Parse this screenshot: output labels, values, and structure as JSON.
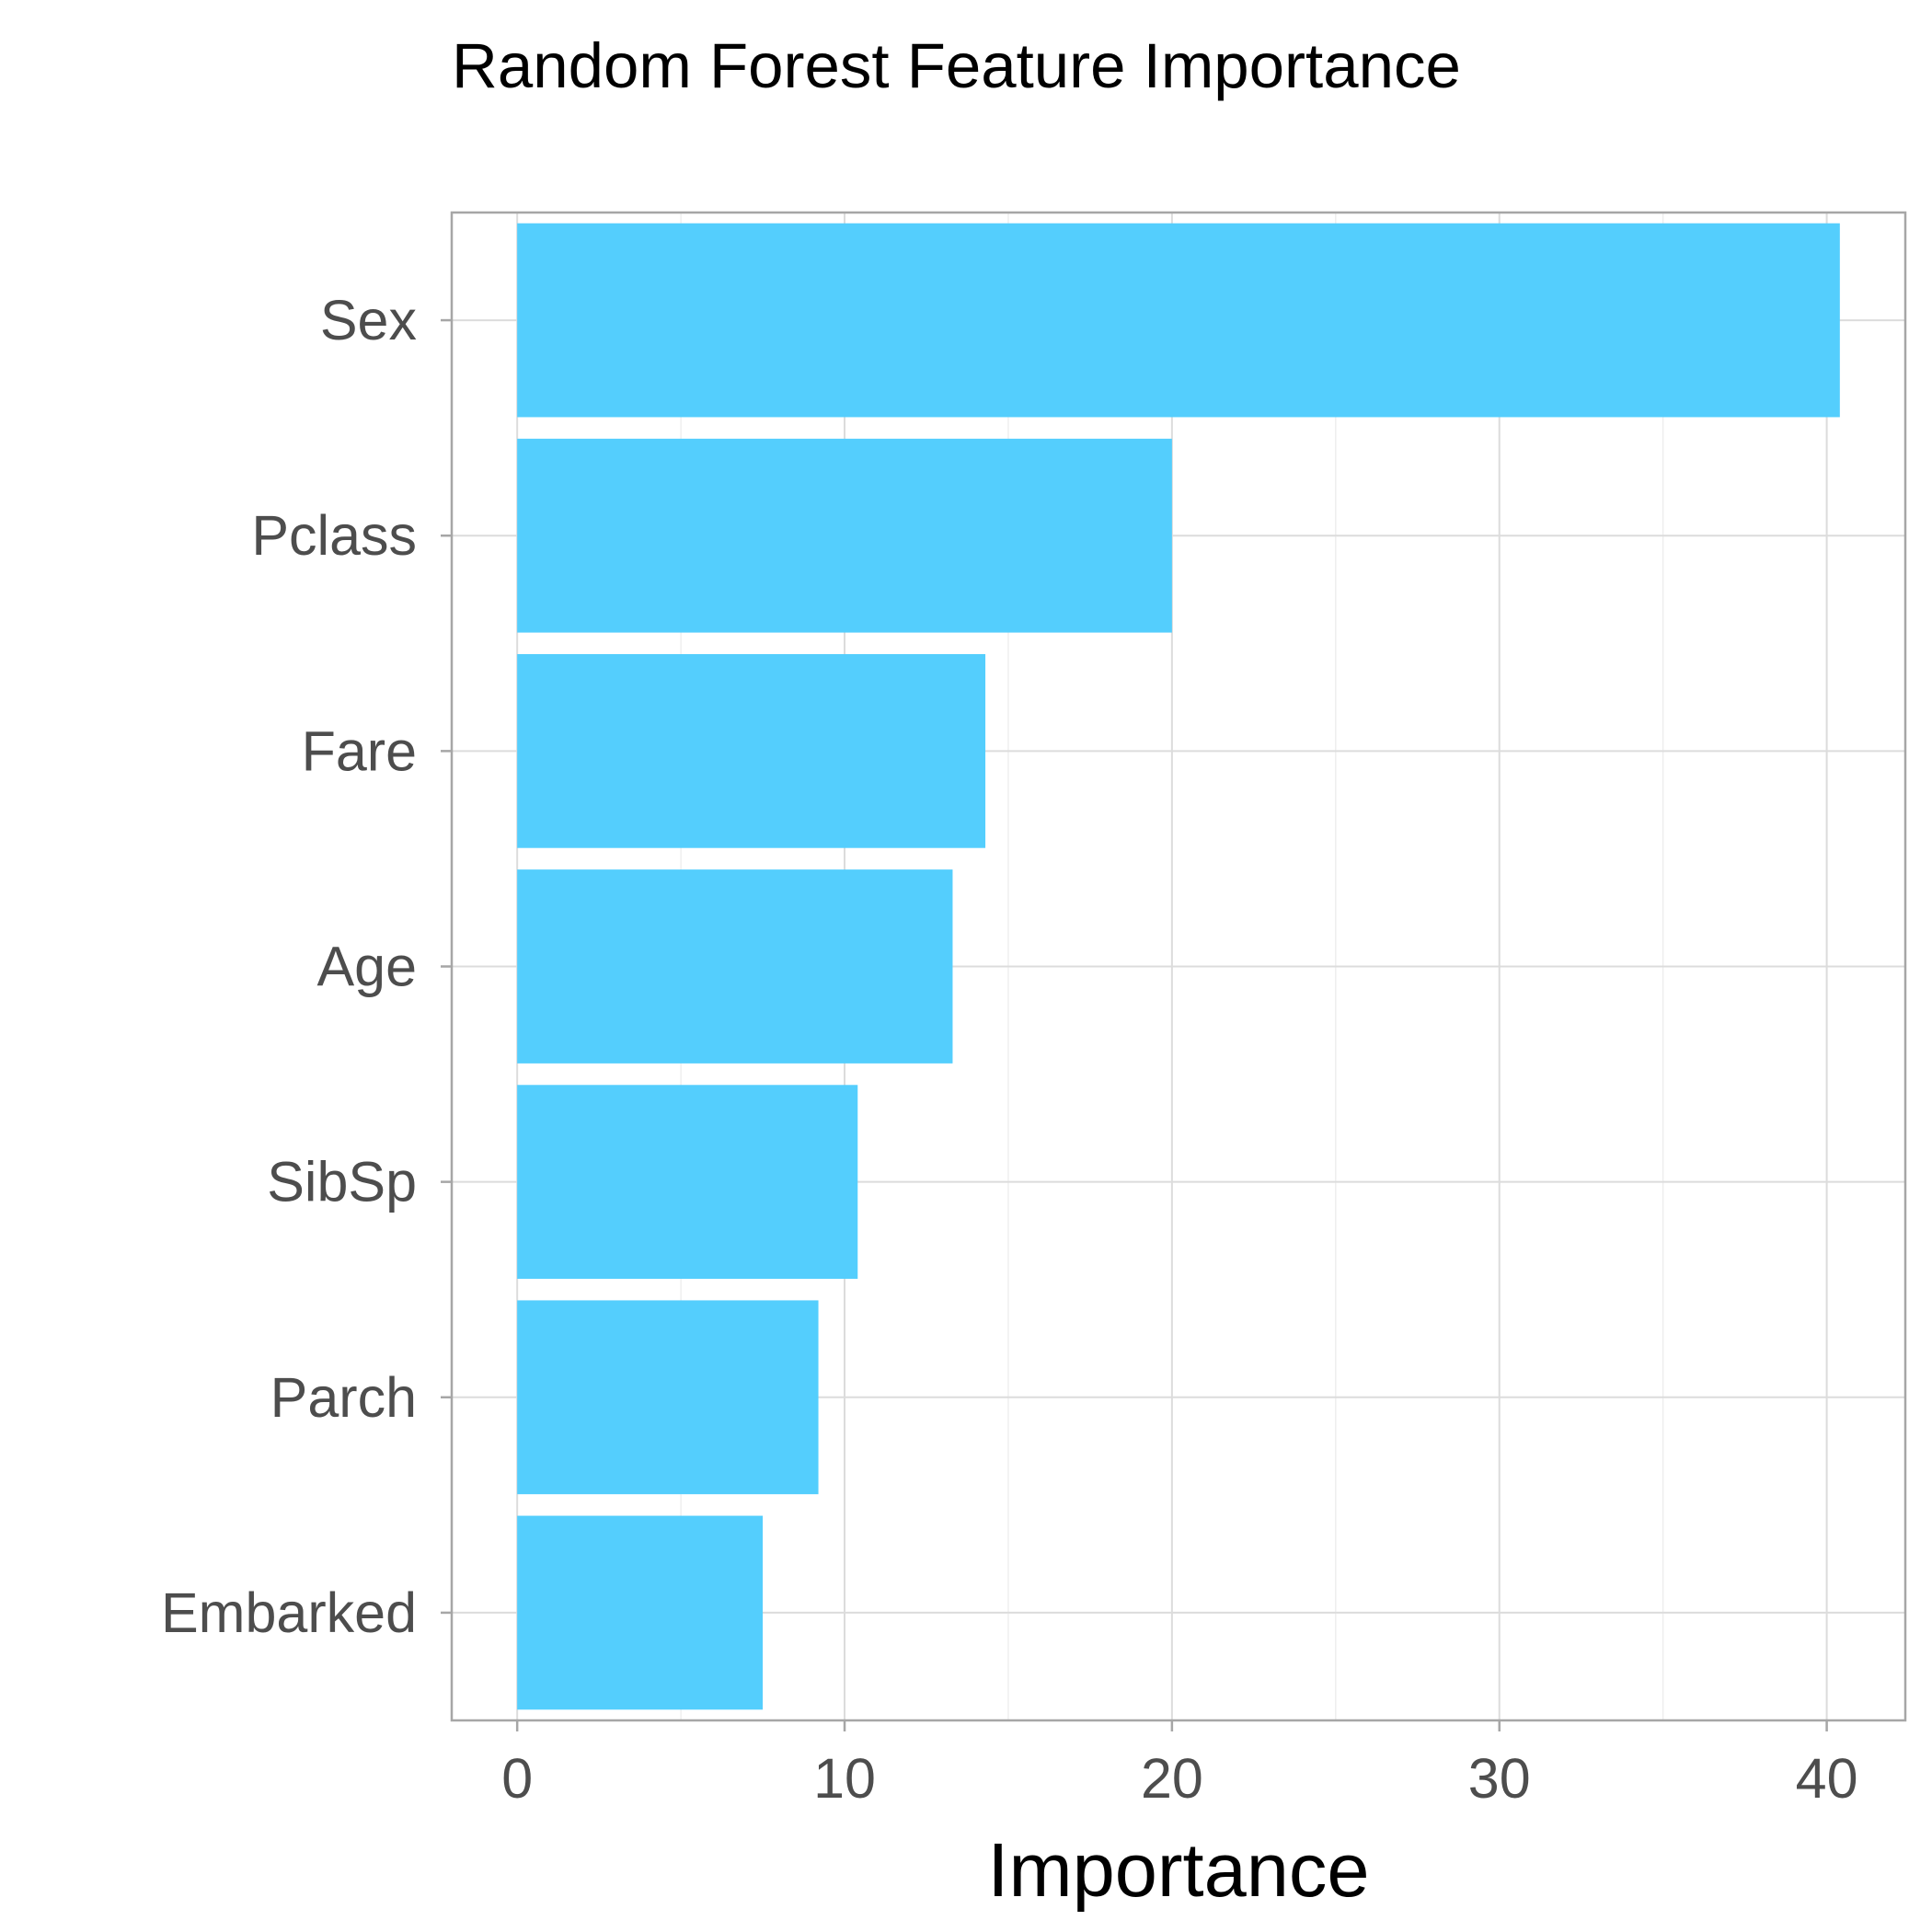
{
  "chart_data": {
    "type": "bar",
    "orientation": "horizontal",
    "title": "Random Forest Feature Importance",
    "xlabel": "Importance",
    "ylabel": "",
    "categories": [
      "Sex",
      "Pclass",
      "Fare",
      "Age",
      "SibSp",
      "Parch",
      "Embarked"
    ],
    "values": [
      40.4,
      20.0,
      14.3,
      13.3,
      10.4,
      9.2,
      7.5
    ],
    "xlim": [
      -2.0,
      42.4
    ],
    "x_ticks": [
      0,
      10,
      20,
      30,
      40
    ],
    "x_tick_labels": [
      "0",
      "10",
      "20",
      "30",
      "40"
    ],
    "grid": true,
    "legend": "none",
    "bar_color": "#54cefd"
  }
}
